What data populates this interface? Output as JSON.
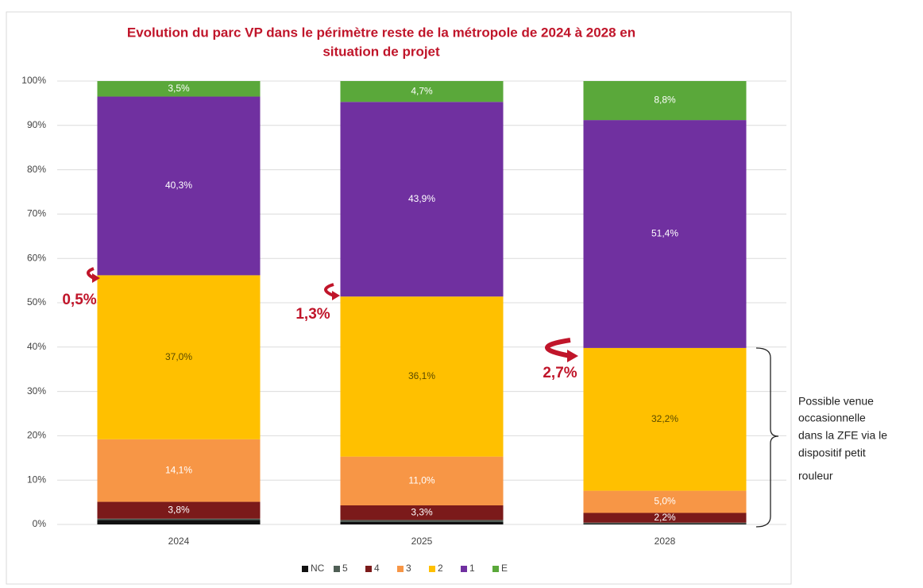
{
  "chart_data": {
    "type": "stacked_bar",
    "title": [
      "Evolution du parc VP dans le périmètre reste de la métropole de 2024 à 2028 en",
      "situation de projet"
    ],
    "categories": [
      "2024",
      "2025",
      "2028"
    ],
    "series": [
      {
        "name": "NC",
        "color": "#111111",
        "values": [
          1.0,
          0.6,
          0.2
        ],
        "value_labels": [
          null,
          null,
          null
        ]
      },
      {
        "name": "5",
        "color": "#4f5e55",
        "values": [
          0.3,
          0.4,
          0.2
        ],
        "value_labels": [
          null,
          null,
          null
        ]
      },
      {
        "name": "4",
        "color": "#7b1a1a",
        "values": [
          3.8,
          3.3,
          2.2
        ],
        "value_labels": [
          "3,8%",
          "3,3%",
          "2,2%"
        ]
      },
      {
        "name": "3",
        "color": "#f79646",
        "values": [
          14.1,
          11.0,
          5.0
        ],
        "value_labels": [
          "14,1%",
          "11,0%",
          "5,0%"
        ]
      },
      {
        "name": "2",
        "color": "#ffc000",
        "values": [
          37.0,
          36.1,
          32.2
        ],
        "value_labels": [
          "37,0%",
          "36,1%",
          "32,2%"
        ]
      },
      {
        "name": "1",
        "color": "#7030a0",
        "values": [
          40.3,
          43.9,
          51.4
        ],
        "value_labels": [
          "40,3%",
          "43,9%",
          "51,4%"
        ]
      },
      {
        "name": "E",
        "color": "#5aa83a",
        "values": [
          3.5,
          4.7,
          8.8
        ],
        "value_labels": [
          "3,5%",
          "4,7%",
          "8,8%"
        ]
      }
    ],
    "ylim": [
      0,
      100
    ],
    "yticks": [
      {
        "value": 0,
        "label": "0%"
      },
      {
        "value": 10,
        "label": "10%"
      },
      {
        "value": 20,
        "label": "20%"
      },
      {
        "value": 30,
        "label": "30%"
      },
      {
        "value": 40,
        "label": "40%"
      },
      {
        "value": 50,
        "label": "50%"
      },
      {
        "value": 60,
        "label": "60%"
      },
      {
        "value": 70,
        "label": "70%"
      },
      {
        "value": 80,
        "label": "80%"
      },
      {
        "value": 90,
        "label": "90%"
      },
      {
        "value": 100,
        "label": "100%"
      }
    ],
    "grid": true,
    "legend": "bottom",
    "annotations": [
      "0,5%",
      "1,3%",
      "2,7%"
    ],
    "side_note": [
      "Possible venue",
      "occasionnelle",
      "dans la ZFE via le",
      "dispositif petit",
      "rouleur"
    ]
  }
}
